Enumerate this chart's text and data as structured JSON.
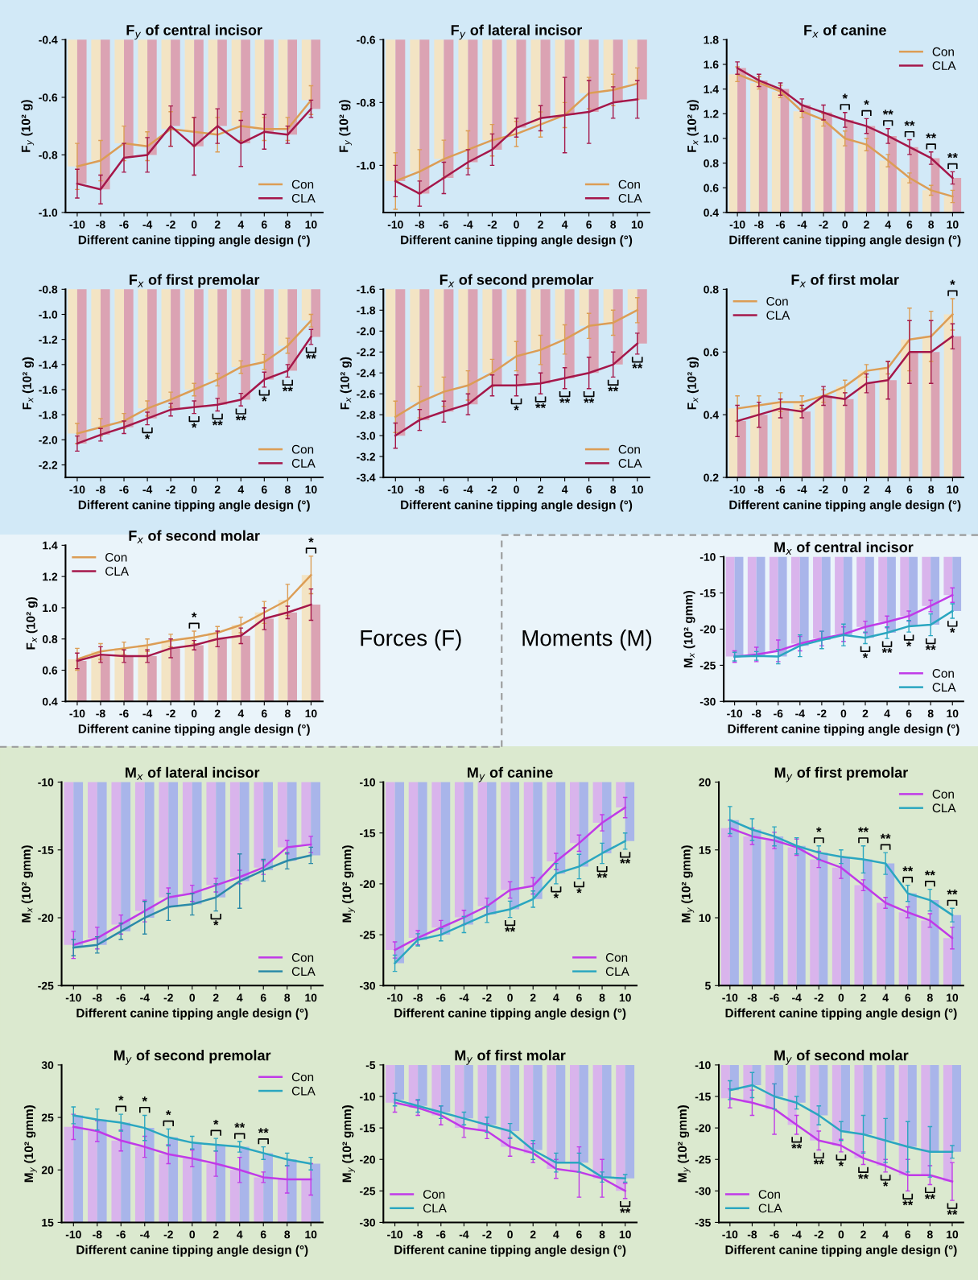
{
  "chart_data": [
    {
      "type": "bar",
      "title": "F$_{y}$ of central incisor",
      "xlabel": "Different canine tipping angle design (°)",
      "ylabel": "F$_{y}$ (10² g)",
      "categories": [
        "-10",
        "-8",
        "-6",
        "-4",
        "-2",
        "0",
        "2",
        "4",
        "6",
        "8",
        "10"
      ],
      "ylim": [
        -1.0,
        -0.4
      ],
      "yticks": [
        {
          "value": -1,
          "label": "-1.0"
        },
        -0.8,
        -0.6,
        -0.4
      ],
      "legend": "bottom right",
      "series": [
        {
          "type": "bar",
          "color": "#f3e4c4",
          "values": [
            -0.84,
            -0.82,
            -0.76,
            -0.77,
            -0.71,
            -0.72,
            -0.73,
            -0.7,
            -0.71,
            -0.71,
            -0.61
          ]
        },
        {
          "type": "bar",
          "color": "#dba3b3",
          "values": [
            -0.9,
            -0.92,
            -0.81,
            -0.8,
            -0.7,
            -0.77,
            -0.7,
            -0.76,
            -0.72,
            -0.73,
            -0.64
          ]
        },
        {
          "type": "line",
          "name": "Con",
          "color": "#dc9d55",
          "values": [
            -0.84,
            -0.82,
            -0.76,
            -0.77,
            -0.71,
            -0.72,
            -0.73,
            -0.7,
            -0.71,
            -0.71,
            -0.61
          ],
          "errors": [
            0.08,
            0.07,
            0.06,
            0.05,
            0.06,
            0.05,
            0.06,
            0.05,
            0.04,
            0.04,
            0.05
          ]
        },
        {
          "type": "line",
          "name": "CLA",
          "color": "#a5174a",
          "values": [
            -0.9,
            -0.92,
            -0.81,
            -0.8,
            -0.7,
            -0.77,
            -0.7,
            -0.76,
            -0.72,
            -0.73,
            -0.64
          ],
          "errors": [
            0.05,
            0.05,
            0.05,
            0.06,
            0.07,
            0.1,
            0.06,
            0.08,
            0.06,
            0.03,
            0.03
          ]
        }
      ]
    },
    {
      "type": "bar",
      "title": "F$_{y}$ of lateral incisor",
      "xlabel": "Different canine tipping angle design (°)",
      "ylabel": "F$_{y}$ (10² g)",
      "categories": [
        "-10",
        "-8",
        "-6",
        "-4",
        "-2",
        "0",
        "2",
        "4",
        "6",
        "8",
        "10"
      ],
      "ylim": [
        -1.15,
        -0.6
      ],
      "yticks": [
        {
          "value": -1,
          "label": "-1.0"
        },
        -0.8,
        -0.6
      ],
      "legend": "bottom right",
      "series": [
        {
          "type": "bar",
          "color": "#f3e4c4",
          "values": [
            -1.05,
            -1.02,
            -0.98,
            -0.95,
            -0.92,
            -0.9,
            -0.87,
            -0.84,
            -0.77,
            -0.76,
            -0.74
          ]
        },
        {
          "type": "bar",
          "color": "#dba3b3",
          "values": [
            -1.05,
            -1.09,
            -1.04,
            -0.99,
            -0.95,
            -0.88,
            -0.85,
            -0.84,
            -0.83,
            -0.8,
            -0.79
          ]
        },
        {
          "type": "line",
          "name": "Con",
          "color": "#dc9d55",
          "values": [
            -1.05,
            -1.02,
            -0.98,
            -0.95,
            -0.92,
            -0.9,
            -0.87,
            -0.84,
            -0.77,
            -0.76,
            -0.74
          ],
          "errors": [
            0.09,
            0.07,
            0.06,
            0.06,
            0.05,
            0.04,
            0.04,
            0.04,
            0.05,
            0.05,
            0.05
          ]
        },
        {
          "type": "line",
          "name": "CLA",
          "color": "#a5174a",
          "values": [
            -1.05,
            -1.09,
            -1.04,
            -0.99,
            -0.95,
            -0.88,
            -0.85,
            -0.84,
            -0.83,
            -0.8,
            -0.79
          ],
          "errors": [
            0.05,
            0.04,
            0.05,
            0.04,
            0.05,
            0.03,
            0.04,
            0.12,
            0.1,
            0.05,
            0.06
          ]
        }
      ]
    },
    {
      "type": "bar",
      "title": "F$_{x}$ of canine",
      "xlabel": "Different canine tipping angle design (°)",
      "ylabel": "F$_{x}$ (10² g)",
      "categories": [
        "-10",
        "-8",
        "-6",
        "-4",
        "-2",
        "0",
        "2",
        "4",
        "6",
        "8",
        "10"
      ],
      "ylim": [
        0.4,
        1.8
      ],
      "yticks": [
        0.4,
        0.6,
        0.8,
        {
          "value": 1,
          "label": "1.0"
        },
        1.2,
        1.4,
        1.6,
        1.8
      ],
      "legend": "top right",
      "series": [
        {
          "type": "bar",
          "color": "#f3e4c4",
          "values": [
            1.52,
            1.45,
            1.38,
            1.22,
            1.15,
            1.0,
            0.95,
            0.82,
            0.68,
            0.58,
            0.53
          ]
        },
        {
          "type": "bar",
          "color": "#dba3b3",
          "values": [
            1.57,
            1.47,
            1.4,
            1.27,
            1.21,
            1.15,
            1.1,
            1.02,
            0.93,
            0.84,
            0.68
          ]
        },
        {
          "type": "line",
          "name": "Con",
          "color": "#dc9d55",
          "values": [
            1.52,
            1.45,
            1.38,
            1.22,
            1.15,
            1.0,
            0.95,
            0.82,
            0.68,
            0.58,
            0.53
          ],
          "errors": [
            0.06,
            0.05,
            0.05,
            0.05,
            0.05,
            0.06,
            0.05,
            0.05,
            0.04,
            0.04,
            0.05
          ]
        },
        {
          "type": "line",
          "name": "CLA",
          "color": "#a5174a",
          "values": [
            1.57,
            1.47,
            1.4,
            1.27,
            1.21,
            1.15,
            1.1,
            1.02,
            0.93,
            0.84,
            0.68
          ],
          "errors": [
            0.05,
            0.05,
            0.05,
            0.05,
            0.06,
            0.06,
            0.06,
            0.06,
            0.06,
            0.05,
            0.05
          ]
        }
      ],
      "annotations": [
        {
          "text": "*",
          "x": "0",
          "y": 1.15
        },
        {
          "text": "*",
          "x": "2",
          "y": 1.1
        },
        {
          "text": "**",
          "x": "4",
          "y": 1.02
        },
        {
          "text": "**",
          "x": "6",
          "y": 0.93
        },
        {
          "text": "**",
          "x": "8",
          "y": 0.84
        },
        {
          "text": "**",
          "x": "10",
          "y": 0.68
        }
      ]
    },
    {
      "type": "bar",
      "title": "F$_{x}$ of first premolar",
      "xlabel": "Different canine tipping angle design (°)",
      "ylabel": "F$_{x}$ (10² g)",
      "categories": [
        "-10",
        "-8",
        "-6",
        "-4",
        "-2",
        "0",
        "2",
        "4",
        "6",
        "8",
        "10"
      ],
      "ylim": [
        -2.3,
        -0.8
      ],
      "yticks": [
        -2.2,
        {
          "value": -2,
          "label": "-2.0"
        },
        -1.8,
        -1.6,
        -1.4,
        -1.2,
        {
          "value": -1,
          "label": "-1.0"
        },
        -0.8
      ],
      "legend": "bottom right",
      "series": [
        {
          "type": "bar",
          "color": "#f3e4c4",
          "values": [
            -1.95,
            -1.9,
            -1.85,
            -1.75,
            -1.68,
            -1.6,
            -1.52,
            -1.42,
            -1.38,
            -1.25,
            -1.05
          ]
        },
        {
          "type": "bar",
          "color": "#dba3b3",
          "values": [
            -2.03,
            -1.96,
            -1.9,
            -1.83,
            -1.76,
            -1.74,
            -1.72,
            -1.68,
            -1.52,
            -1.45,
            -1.18
          ]
        },
        {
          "type": "line",
          "name": "Con",
          "color": "#dc9d55",
          "values": [
            -1.95,
            -1.9,
            -1.85,
            -1.75,
            -1.68,
            -1.6,
            -1.52,
            -1.42,
            -1.38,
            -1.25,
            -1.05
          ],
          "errors": [
            0.08,
            0.07,
            0.06,
            0.06,
            0.06,
            0.05,
            0.05,
            0.05,
            0.06,
            0.06,
            0.05
          ]
        },
        {
          "type": "line",
          "name": "CLA",
          "color": "#a5174a",
          "values": [
            -2.03,
            -1.96,
            -1.9,
            -1.83,
            -1.76,
            -1.74,
            -1.72,
            -1.68,
            -1.52,
            -1.45,
            -1.18
          ],
          "errors": [
            0.06,
            0.05,
            0.05,
            0.05,
            0.05,
            0.05,
            0.05,
            0.05,
            0.06,
            0.05,
            0.06
          ]
        }
      ],
      "annotations": [
        {
          "text": "*",
          "x": "-4",
          "y": -1.83
        },
        {
          "text": "*",
          "x": "0",
          "y": -1.74
        },
        {
          "text": "**",
          "x": "2",
          "y": -1.72
        },
        {
          "text": "**",
          "x": "4",
          "y": -1.68
        },
        {
          "text": "*",
          "x": "6",
          "y": -1.52
        },
        {
          "text": "**",
          "x": "8",
          "y": -1.45
        },
        {
          "text": "**",
          "x": "10",
          "y": -1.18
        }
      ]
    },
    {
      "type": "bar",
      "title": "F$_{x}$ of second premolar",
      "xlabel": "Different canine tipping angle design (°)",
      "ylabel": "F$_{x}$ (10² g)",
      "categories": [
        "-10",
        "-8",
        "-6",
        "-4",
        "-2",
        "0",
        "2",
        "4",
        "6",
        "8",
        "10"
      ],
      "ylim": [
        -3.4,
        -1.6
      ],
      "yticks": [
        -3.4,
        -3.2,
        {
          "value": -3,
          "label": "-3.0"
        },
        -2.8,
        -2.6,
        -2.4,
        -2.2,
        {
          "value": -2,
          "label": "-2.0"
        },
        -1.8,
        -1.6
      ],
      "legend": "bottom right",
      "series": [
        {
          "type": "bar",
          "color": "#f3e4c4",
          "values": [
            -2.82,
            -2.68,
            -2.58,
            -2.52,
            -2.4,
            -2.24,
            -2.18,
            -2.08,
            -1.95,
            -1.92,
            -1.8
          ]
        },
        {
          "type": "bar",
          "color": "#dba3b3",
          "values": [
            -3.0,
            -2.85,
            -2.77,
            -2.7,
            -2.52,
            -2.52,
            -2.5,
            -2.45,
            -2.4,
            -2.32,
            -2.12
          ]
        },
        {
          "type": "line",
          "name": "Con",
          "color": "#dc9d55",
          "values": [
            -2.82,
            -2.68,
            -2.58,
            -2.52,
            -2.4,
            -2.24,
            -2.18,
            -2.08,
            -1.95,
            -1.92,
            -1.8
          ],
          "errors": [
            0.15,
            0.15,
            0.14,
            0.14,
            0.13,
            0.14,
            0.14,
            0.14,
            0.12,
            0.12,
            0.12
          ]
        },
        {
          "type": "line",
          "name": "CLA",
          "color": "#a5174a",
          "values": [
            -3.0,
            -2.85,
            -2.77,
            -2.7,
            -2.52,
            -2.52,
            -2.5,
            -2.45,
            -2.4,
            -2.32,
            -2.12
          ],
          "errors": [
            0.12,
            0.1,
            0.1,
            0.1,
            0.1,
            0.1,
            0.1,
            0.1,
            0.15,
            0.12,
            0.1
          ]
        }
      ],
      "annotations": [
        {
          "text": "*",
          "x": "0",
          "y": -2.52
        },
        {
          "text": "**",
          "x": "2",
          "y": -2.5
        },
        {
          "text": "**",
          "x": "4",
          "y": -2.45
        },
        {
          "text": "**",
          "x": "6",
          "y": -2.4
        },
        {
          "text": "**",
          "x": "8",
          "y": -2.32
        },
        {
          "text": "**",
          "x": "10",
          "y": -2.12
        }
      ]
    },
    {
      "type": "bar",
      "title": "F$_{x}$ of first molar",
      "xlabel": "Different canine tipping angle design (°)",
      "ylabel": "F$_{x}$ (10² g)",
      "categories": [
        "-10",
        "-8",
        "-6",
        "-4",
        "-2",
        "0",
        "2",
        "4",
        "6",
        "8",
        "10"
      ],
      "ylim": [
        0.2,
        0.8
      ],
      "yticks": [
        0.2,
        0.4,
        0.6,
        0.8
      ],
      "legend": "top left",
      "series": [
        {
          "type": "bar",
          "color": "#f3e4c4",
          "values": [
            0.42,
            0.43,
            0.44,
            0.44,
            0.46,
            0.49,
            0.54,
            0.55,
            0.64,
            0.65,
            0.72
          ]
        },
        {
          "type": "bar",
          "color": "#dba3b3",
          "values": [
            0.38,
            0.4,
            0.42,
            0.41,
            0.46,
            0.45,
            0.5,
            0.51,
            0.6,
            0.6,
            0.65
          ]
        },
        {
          "type": "line",
          "name": "Con",
          "color": "#dc9d55",
          "values": [
            0.42,
            0.43,
            0.44,
            0.44,
            0.46,
            0.49,
            0.54,
            0.55,
            0.64,
            0.65,
            0.72
          ],
          "errors": [
            0.04,
            0.03,
            0.03,
            0.02,
            0.02,
            0.02,
            0.02,
            0.02,
            0.1,
            0.08,
            0.05
          ]
        },
        {
          "type": "line",
          "name": "CLA",
          "color": "#a5174a",
          "values": [
            0.38,
            0.4,
            0.42,
            0.41,
            0.46,
            0.45,
            0.5,
            0.51,
            0.6,
            0.6,
            0.65
          ],
          "errors": [
            0.05,
            0.04,
            0.03,
            0.02,
            0.03,
            0.02,
            0.03,
            0.06,
            0.1,
            0.1,
            0.04
          ]
        }
      ],
      "annotations": [
        {
          "text": "*",
          "x": "10",
          "y": 0.72
        }
      ]
    },
    {
      "type": "bar",
      "title": "F$_{x}$ of second molar",
      "xlabel": "Different canine tipping angle design (°)",
      "ylabel": "F$_{x}$ (10² g)",
      "categories": [
        "-10",
        "-8",
        "-6",
        "-4",
        "-2",
        "0",
        "2",
        "4",
        "6",
        "8",
        "10"
      ],
      "ylim": [
        0.4,
        1.4
      ],
      "yticks": [
        0.4,
        0.6,
        0.8,
        {
          "value": 1,
          "label": "1.0"
        },
        1.2,
        1.4
      ],
      "legend": "top left",
      "series": [
        {
          "type": "bar",
          "color": "#f3e4c4",
          "values": [
            0.67,
            0.72,
            0.74,
            0.76,
            0.79,
            0.81,
            0.84,
            0.89,
            0.97,
            1.05,
            1.21
          ]
        },
        {
          "type": "bar",
          "color": "#dba3b3",
          "values": [
            0.66,
            0.7,
            0.69,
            0.69,
            0.74,
            0.76,
            0.8,
            0.82,
            0.93,
            0.97,
            1.02
          ]
        },
        {
          "type": "line",
          "name": "Con",
          "color": "#dc9d55",
          "values": [
            0.67,
            0.72,
            0.74,
            0.76,
            0.79,
            0.81,
            0.84,
            0.89,
            0.97,
            1.05,
            1.21
          ],
          "errors": [
            0.07,
            0.05,
            0.04,
            0.04,
            0.04,
            0.04,
            0.04,
            0.05,
            0.07,
            0.1,
            0.12
          ]
        },
        {
          "type": "line",
          "name": "CLA",
          "color": "#a5174a",
          "values": [
            0.66,
            0.7,
            0.69,
            0.69,
            0.74,
            0.76,
            0.8,
            0.82,
            0.93,
            0.97,
            1.02
          ],
          "errors": [
            0.05,
            0.05,
            0.04,
            0.04,
            0.06,
            0.03,
            0.05,
            0.05,
            0.07,
            0.04,
            0.1
          ]
        }
      ],
      "annotations": [
        {
          "text": "*",
          "x": "0",
          "y": 0.81
        },
        {
          "text": "*",
          "x": "10",
          "y": 1.21
        }
      ]
    },
    {
      "type": "bar",
      "title": "M$_{x}$ of central incisor",
      "xlabel": "Different canine tipping angle design (°)",
      "ylabel": "M$_{x}$ (10² gmm)",
      "categories": [
        "-10",
        "-8",
        "-6",
        "-4",
        "-2",
        "0",
        "2",
        "4",
        "6",
        "8",
        "10"
      ],
      "ylim": [
        -30,
        -10
      ],
      "yticks": [
        -30,
        -25,
        -20,
        -15,
        -10
      ],
      "legend": "bottom right",
      "series": [
        {
          "type": "bar",
          "color": "#d9b4ec",
          "values": [
            -23.8,
            -23.5,
            -23.0,
            -22.0,
            -21.3,
            -20.7,
            -19.7,
            -19.0,
            -18.2,
            -16.8,
            -15.3
          ]
        },
        {
          "type": "bar",
          "color": "#a9b5ea",
          "values": [
            -23.8,
            -23.7,
            -23.8,
            -22.3,
            -21.5,
            -20.8,
            -21.2,
            -20.5,
            -19.6,
            -19.4,
            -17.5
          ]
        },
        {
          "type": "line",
          "name": "Con",
          "color": "#c03ae8",
          "values": [
            -23.8,
            -23.5,
            -23.0,
            -22.0,
            -21.3,
            -20.7,
            -19.7,
            -19.0,
            -18.2,
            -16.8,
            -15.3
          ],
          "errors": [
            0.8,
            1.0,
            1.5,
            1.0,
            1.0,
            1.0,
            0.8,
            0.8,
            0.7,
            0.8,
            1.0
          ]
        },
        {
          "type": "line",
          "name": "CLA",
          "color": "#2aa6c0",
          "values": [
            -23.8,
            -23.7,
            -23.8,
            -22.3,
            -21.5,
            -20.8,
            -21.2,
            -20.5,
            -19.6,
            -19.4,
            -17.5
          ],
          "errors": [
            0.6,
            0.6,
            1.0,
            1.5,
            1.2,
            1.5,
            0.8,
            0.8,
            0.8,
            1.5,
            1.0
          ]
        }
      ],
      "annotations": [
        {
          "text": "*",
          "x": "2",
          "y": -21.2
        },
        {
          "text": "**",
          "x": "4",
          "y": -20.5
        },
        {
          "text": "*",
          "x": "6",
          "y": -19.6
        },
        {
          "text": "**",
          "x": "8",
          "y": -19.4
        },
        {
          "text": "*",
          "x": "10",
          "y": -17.5
        }
      ]
    },
    {
      "type": "bar",
      "title": "M$_{x}$ of lateral incisor",
      "xlabel": "Different canine tipping angle design (°)",
      "ylabel": "M$_{x}$ (10² gmm)",
      "categories": [
        "-10",
        "-8",
        "-6",
        "-4",
        "-2",
        "0",
        "2",
        "4",
        "6",
        "8",
        "10"
      ],
      "ylim": [
        -25,
        -10
      ],
      "yticks": [
        -25,
        -20,
        -15,
        -10
      ],
      "legend": "bottom right",
      "series": [
        {
          "type": "bar",
          "color": "#d9b4ec",
          "values": [
            -22.0,
            -21.5,
            -20.5,
            -19.5,
            -18.5,
            -18.2,
            -17.6,
            -17.0,
            -16.3,
            -14.8,
            -14.6
          ]
        },
        {
          "type": "bar",
          "color": "#a9b5ea",
          "values": [
            -22.2,
            -22.0,
            -21.0,
            -20.0,
            -19.2,
            -19.0,
            -18.5,
            -17.3,
            -16.5,
            -15.8,
            -15.4
          ]
        },
        {
          "type": "line",
          "name": "Con",
          "color": "#c03ae8",
          "values": [
            -22.0,
            -21.5,
            -20.5,
            -19.5,
            -18.5,
            -18.2,
            -17.6,
            -17.0,
            -16.3,
            -14.8,
            -14.6
          ],
          "errors": [
            1.0,
            0.8,
            0.7,
            0.8,
            0.7,
            0.6,
            0.5,
            0.5,
            0.5,
            0.5,
            0.6
          ]
        },
        {
          "type": "line",
          "name": "CLA",
          "color": "#2a8aa8",
          "values": [
            -22.2,
            -22.0,
            -21.0,
            -20.0,
            -19.2,
            -19.0,
            -18.5,
            -17.3,
            -16.5,
            -15.8,
            -15.4
          ],
          "errors": [
            0.6,
            0.6,
            0.6,
            1.2,
            1.0,
            0.8,
            1.0,
            2.0,
            0.8,
            0.6,
            0.6
          ]
        }
      ],
      "annotations": [
        {
          "text": "*",
          "x": "2",
          "y": -18.5
        }
      ]
    },
    {
      "type": "bar",
      "title": "M$_{y}$ of canine",
      "xlabel": "Different canine tipping angle design (°)",
      "ylabel": "M$_{y}$ (10² gmm)",
      "categories": [
        "-10",
        "-8",
        "-6",
        "-4",
        "-2",
        "0",
        "2",
        "4",
        "6",
        "8",
        "10"
      ],
      "ylim": [
        -30,
        -10
      ],
      "yticks": [
        -30,
        -25,
        -20,
        -15,
        -10
      ],
      "legend": "bottom right",
      "series": [
        {
          "type": "bar",
          "color": "#d9b4ec",
          "values": [
            -26.5,
            -25.3,
            -24.3,
            -23.3,
            -22.2,
            -20.6,
            -20.2,
            -17.8,
            -16.0,
            -14.0,
            -12.5
          ]
        },
        {
          "type": "bar",
          "color": "#a9b5ea",
          "values": [
            -27.8,
            -25.5,
            -25.0,
            -24.0,
            -23.0,
            -22.5,
            -21.5,
            -19.0,
            -18.3,
            -17.0,
            -15.8
          ]
        },
        {
          "type": "line",
          "name": "Con",
          "color": "#c03ae8",
          "values": [
            -26.5,
            -25.3,
            -24.3,
            -23.3,
            -22.2,
            -20.6,
            -20.2,
            -17.8,
            -16.0,
            -14.0,
            -12.5
          ],
          "errors": [
            0.8,
            0.7,
            0.7,
            0.7,
            0.8,
            0.8,
            0.8,
            0.8,
            0.8,
            0.8,
            1.0
          ]
        },
        {
          "type": "line",
          "name": "CLA",
          "color": "#2aa6c0",
          "values": [
            -27.8,
            -25.5,
            -25.0,
            -24.0,
            -23.0,
            -22.5,
            -21.5,
            -19.0,
            -18.3,
            -17.0,
            -15.8
          ],
          "errors": [
            0.8,
            0.6,
            0.6,
            0.8,
            0.8,
            0.8,
            0.8,
            1.0,
            1.2,
            1.0,
            0.8
          ]
        }
      ],
      "annotations": [
        {
          "text": "**",
          "x": "0",
          "y": -22.5
        },
        {
          "text": "*",
          "x": "4",
          "y": -19
        },
        {
          "text": "*",
          "x": "6",
          "y": -18.3
        },
        {
          "text": "**",
          "x": "8",
          "y": -17
        },
        {
          "text": "**",
          "x": "10",
          "y": -15.8
        }
      ]
    },
    {
      "type": "bar",
      "title": "M$_{y}$ of first premolar",
      "xlabel": "Different canine tipping angle design (°)",
      "ylabel": "M$_{y}$ (10² gmm)",
      "categories": [
        "-10",
        "-8",
        "-6",
        "-4",
        "-2",
        "0",
        "2",
        "4",
        "6",
        "8",
        "10"
      ],
      "ylim": [
        5,
        20
      ],
      "yticks": [
        5,
        10,
        15,
        20
      ],
      "legend": "top right",
      "series": [
        {
          "type": "bar",
          "color": "#d9b4ec",
          "values": [
            16.6,
            16.0,
            15.7,
            15.2,
            14.3,
            13.7,
            12.4,
            11.1,
            10.4,
            9.8,
            8.5
          ]
        },
        {
          "type": "bar",
          "color": "#a9b5ea",
          "values": [
            17.2,
            16.5,
            16.0,
            15.3,
            14.8,
            14.5,
            14.3,
            14.0,
            11.8,
            11.3,
            10.2
          ]
        },
        {
          "type": "line",
          "name": "Con",
          "color": "#c03ae8",
          "values": [
            16.6,
            16.0,
            15.7,
            15.2,
            14.3,
            13.7,
            12.4,
            11.1,
            10.4,
            9.8,
            8.5
          ],
          "errors": [
            0.6,
            0.6,
            0.6,
            0.6,
            0.6,
            0.8,
            0.4,
            0.4,
            0.4,
            0.5,
            0.8
          ]
        },
        {
          "type": "line",
          "name": "CLA",
          "color": "#2aa6c0",
          "values": [
            17.2,
            16.5,
            16.0,
            15.3,
            14.8,
            14.5,
            14.3,
            14.0,
            11.8,
            11.3,
            10.2
          ],
          "errors": [
            1.0,
            0.8,
            0.7,
            0.6,
            0.5,
            0.5,
            1.0,
            0.8,
            0.6,
            0.8,
            0.5
          ]
        }
      ],
      "annotations": [
        {
          "text": "*",
          "x": "-2",
          "y": 14.8
        },
        {
          "text": "**",
          "x": "2",
          "y": 14.3
        },
        {
          "text": "**",
          "x": "4",
          "y": 14
        },
        {
          "text": "**",
          "x": "6",
          "y": 11.8
        },
        {
          "text": "**",
          "x": "8",
          "y": 11.3
        },
        {
          "text": "**",
          "x": "10",
          "y": 10.2
        }
      ]
    },
    {
      "type": "bar",
      "title": "M$_{y}$ of second premolar",
      "xlabel": "Different canine tipping angle design (°)",
      "ylabel": "M$_{y}$ (10² gmm)",
      "categories": [
        "-10",
        "-8",
        "-6",
        "-4",
        "-2",
        "0",
        "2",
        "4",
        "6",
        "8",
        "10"
      ],
      "ylim": [
        15,
        30
      ],
      "yticks": [
        15,
        20,
        25,
        30
      ],
      "legend": "top right",
      "series": [
        {
          "type": "bar",
          "color": "#d9b4ec",
          "values": [
            24.1,
            23.7,
            22.8,
            22.2,
            21.5,
            21.1,
            20.6,
            20.0,
            19.3,
            19.1,
            19.1
          ]
        },
        {
          "type": "bar",
          "color": "#a9b5ea",
          "values": [
            25.2,
            24.8,
            24.5,
            24.0,
            23.1,
            22.6,
            22.4,
            22.2,
            21.6,
            21.0,
            20.6
          ]
        },
        {
          "type": "line",
          "name": "Con",
          "color": "#c03ae8",
          "values": [
            24.1,
            23.7,
            22.8,
            22.2,
            21.5,
            21.1,
            20.6,
            20.0,
            19.3,
            19.1,
            19.1
          ],
          "errors": [
            1.2,
            1.0,
            1.0,
            1.0,
            0.9,
            0.8,
            1.2,
            1.2,
            0.5,
            1.3,
            1.5
          ]
        },
        {
          "type": "line",
          "name": "CLA",
          "color": "#2aa6c0",
          "values": [
            25.2,
            24.8,
            24.5,
            24.0,
            23.1,
            22.6,
            22.4,
            22.2,
            21.6,
            21.0,
            20.6
          ],
          "errors": [
            0.8,
            1.0,
            0.8,
            1.2,
            0.8,
            0.6,
            0.6,
            0.5,
            0.6,
            0.6,
            0.6
          ]
        }
      ],
      "annotations": [
        {
          "text": "*",
          "x": "-6",
          "y": 24.5
        },
        {
          "text": "*",
          "x": "-4",
          "y": 24
        },
        {
          "text": "*",
          "x": "-2",
          "y": 23.1
        },
        {
          "text": "*",
          "x": "2",
          "y": 22.4
        },
        {
          "text": "**",
          "x": "4",
          "y": 22.2
        },
        {
          "text": "**",
          "x": "6",
          "y": 21.6
        }
      ]
    },
    {
      "type": "bar",
      "title": "M$_{y}$ of first molar",
      "xlabel": "Different canine tipping angle design (°)",
      "ylabel": "M$_{y}$ (10² gmm)",
      "categories": [
        "-10",
        "-8",
        "-6",
        "-4",
        "-2",
        "0",
        "2",
        "4",
        "6",
        "8",
        "10"
      ],
      "ylim": [
        -30,
        -5
      ],
      "yticks": [
        -30,
        -25,
        -20,
        -15,
        -10,
        -5
      ],
      "legend": "bottom left",
      "series": [
        {
          "type": "bar",
          "color": "#d9b4ec",
          "values": [
            -11.0,
            -11.8,
            -13.0,
            -15.0,
            -15.5,
            -18.0,
            -19.0,
            -21.5,
            -22.0,
            -23.0,
            -25.0
          ]
        },
        {
          "type": "bar",
          "color": "#a9b5ea",
          "values": [
            -10.5,
            -11.5,
            -12.5,
            -13.5,
            -14.5,
            -15.5,
            -18.5,
            -20.5,
            -20.5,
            -22.8,
            -23.0
          ]
        },
        {
          "type": "line",
          "name": "Con",
          "color": "#c03ae8",
          "values": [
            -11.0,
            -11.8,
            -13.0,
            -15.0,
            -15.5,
            -18.0,
            -19.0,
            -21.5,
            -22.0,
            -23.0,
            -25.0
          ],
          "errors": [
            1.5,
            1.2,
            1.5,
            1.5,
            1.2,
            1.5,
            1.5,
            1.5,
            4.0,
            3.0,
            1.2
          ]
        },
        {
          "type": "line",
          "name": "CLA",
          "color": "#2aa6c0",
          "values": [
            -10.5,
            -11.5,
            -12.5,
            -13.5,
            -14.5,
            -15.5,
            -18.5,
            -20.5,
            -20.5,
            -22.8,
            -23.0
          ],
          "errors": [
            1.0,
            1.0,
            1.0,
            1.0,
            1.2,
            1.2,
            1.5,
            1.5,
            1.5,
            0.8,
            0.6
          ]
        }
      ],
      "annotations": [
        {
          "text": "**",
          "x": "10",
          "y": -25
        }
      ]
    },
    {
      "type": "bar",
      "title": "M$_{y}$ of second molar",
      "xlabel": "Different canine tipping angle design (°)",
      "ylabel": "M$_{y}$ (10² gmm)",
      "categories": [
        "-10",
        "-8",
        "-6",
        "-4",
        "-2",
        "0",
        "2",
        "4",
        "6",
        "8",
        "10"
      ],
      "ylim": [
        -35,
        -10
      ],
      "yticks": [
        -35,
        -30,
        -25,
        -20,
        -15,
        -10
      ],
      "legend": "bottom left",
      "series": [
        {
          "type": "bar",
          "color": "#d9b4ec",
          "values": [
            -15.3,
            -16.0,
            -17.0,
            -19.5,
            -22.0,
            -22.8,
            -24.8,
            -26.0,
            -27.5,
            -27.5,
            -28.5
          ]
        },
        {
          "type": "bar",
          "color": "#a9b5ea",
          "values": [
            -14.0,
            -13.2,
            -15.0,
            -16.0,
            -18.0,
            -20.5,
            -21.0,
            -22.0,
            -23.0,
            -23.8,
            -23.8
          ]
        },
        {
          "type": "line",
          "name": "Con",
          "color": "#c03ae8",
          "values": [
            -15.3,
            -16.0,
            -17.0,
            -19.5,
            -22.0,
            -22.8,
            -24.8,
            -26.0,
            -27.5,
            -27.5,
            -28.5
          ],
          "errors": [
            1.5,
            2.0,
            4.0,
            1.5,
            1.5,
            1.0,
            1.0,
            1.0,
            2.5,
            1.5,
            3.0
          ]
        },
        {
          "type": "line",
          "name": "CLA",
          "color": "#2aa6c0",
          "values": [
            -14.0,
            -13.2,
            -15.0,
            -16.0,
            -18.0,
            -20.5,
            -21.0,
            -22.0,
            -23.0,
            -23.8,
            -23.8
          ],
          "errors": [
            1.5,
            2.0,
            2.0,
            1.0,
            1.5,
            1.5,
            3.0,
            3.5,
            4.0,
            4.0,
            1.0
          ]
        }
      ],
      "annotations": [
        {
          "text": "**",
          "x": "-4",
          "y": -19.5
        },
        {
          "text": "**",
          "x": "-2",
          "y": -22
        },
        {
          "text": "*",
          "x": "0",
          "y": -22.8
        },
        {
          "text": "**",
          "x": "2",
          "y": -24.8
        },
        {
          "text": "*",
          "x": "4",
          "y": -26
        },
        {
          "text": "**",
          "x": "6",
          "y": -27.5
        },
        {
          "text": "**",
          "x": "8",
          "y": -27.5
        },
        {
          "text": "**",
          "x": "10",
          "y": -28.5
        }
      ]
    },
    {
      "type": "other",
      "annotations": [
        "Forces (F)",
        "Moments (M)"
      ]
    }
  ]
}
